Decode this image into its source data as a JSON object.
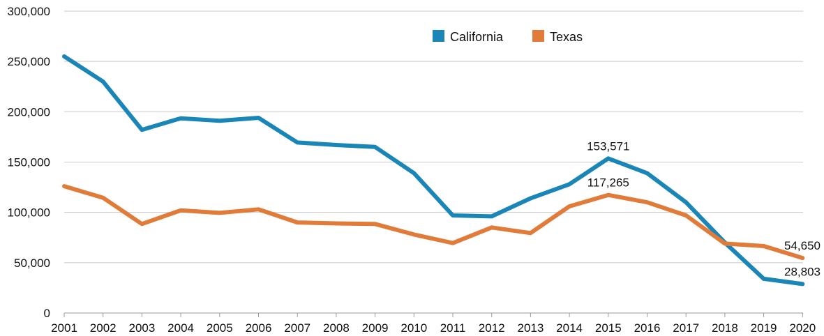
{
  "chart_data": {
    "type": "line",
    "title": "",
    "xlabel": "",
    "ylabel": "",
    "x": [
      "2001",
      "2002",
      "2003",
      "2004",
      "2005",
      "2006",
      "2007",
      "2008",
      "2009",
      "2010",
      "2011",
      "2012",
      "2013",
      "2014",
      "2015",
      "2016",
      "2017",
      "2018",
      "2019",
      "2020"
    ],
    "ylim": [
      0,
      300000
    ],
    "yticks": [
      0,
      50000,
      100000,
      150000,
      200000,
      250000,
      300000
    ],
    "ytick_labels": [
      "0",
      "50,000",
      "100,000",
      "150,000",
      "200,000",
      "250,000",
      "300,000"
    ],
    "grid": "horizontal",
    "legend_position": "top-right",
    "series": [
      {
        "name": "California",
        "color": "#1a86b8",
        "values": [
          255000,
          230000,
          182000,
          193500,
          191000,
          194000,
          169500,
          167000,
          165000,
          139000,
          97000,
          96000,
          114000,
          128000,
          153571,
          139000,
          110000,
          70000,
          34000,
          28803
        ]
      },
      {
        "name": "Texas",
        "color": "#e07b39",
        "values": [
          126000,
          114500,
          88500,
          102000,
          99500,
          103000,
          90000,
          89000,
          88500,
          78000,
          69500,
          85000,
          79500,
          106000,
          117265,
          110000,
          97000,
          69000,
          66500,
          54650
        ]
      }
    ],
    "annotations": [
      {
        "series": 0,
        "x": "2015",
        "text": "153,571",
        "place": "above"
      },
      {
        "series": 1,
        "x": "2015",
        "text": "117,265",
        "place": "above"
      },
      {
        "series": 1,
        "x": "2020",
        "text": "54,650",
        "place": "above"
      },
      {
        "series": 0,
        "x": "2020",
        "text": "28,803",
        "place": "above"
      }
    ]
  }
}
